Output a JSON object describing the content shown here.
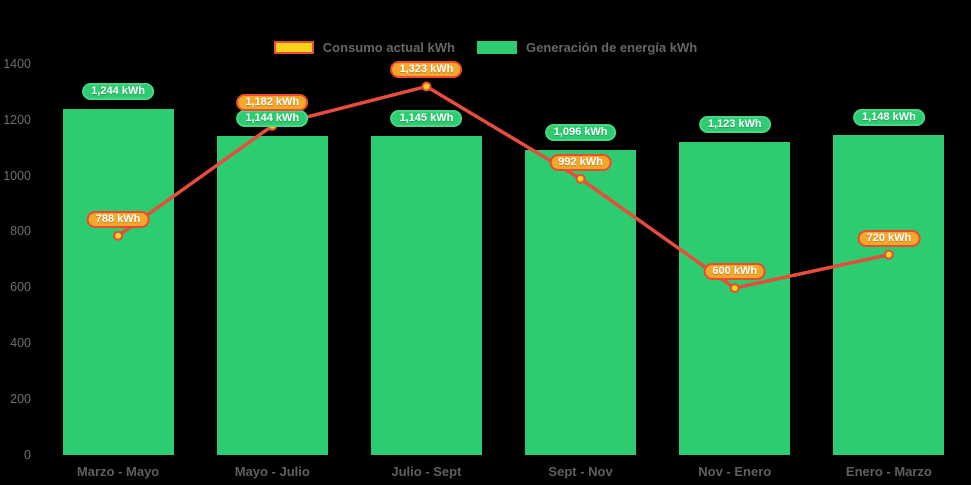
{
  "legend": [
    {
      "label": "Consumo actual kWh"
    },
    {
      "label": "Generación de energía kWh"
    }
  ],
  "colors": {
    "background": "#000000",
    "bar_green": "#2ecc71",
    "bar_label_border": "#48d787",
    "line_red": "#e74c3c",
    "marker_yellow": "#fcd21c",
    "consumo_pill_fill": "#f3a82c",
    "consumo_pill_border": "#ef4a2d",
    "axis_text": "#5f5f5f"
  },
  "chart_data": {
    "type": "bar",
    "title": "",
    "xlabel": "",
    "ylabel": "",
    "categories": [
      "Marzo - Mayo",
      "Mayo - Julio",
      "Julio - Sept",
      "Sept - Nov",
      "Nov - Enero",
      "Enero - Marzo"
    ],
    "series": [
      {
        "name": "Generación de energía kWh",
        "type": "bar",
        "color": "#2ecc71",
        "values": [
          1244,
          1144,
          1145,
          1096,
          1123,
          1148
        ],
        "labels": [
          "1,244 kWh",
          "1,144 kWh",
          "1,145 kWh",
          "1,096 kWh",
          "1,123 kWh",
          "1,148 kWh"
        ]
      },
      {
        "name": "Consumo actual kWh",
        "type": "line",
        "color": "#e74c3c",
        "values": [
          788,
          1182,
          1323,
          992,
          600,
          720
        ],
        "labels": [
          "788 kWh",
          "1,182 kWh",
          "1,323 kWh",
          "992 kWh",
          "600 kWh",
          "720 kWh"
        ]
      }
    ],
    "ylim": [
      0,
      1400
    ],
    "yticks": [
      0,
      200,
      400,
      600,
      800,
      1000,
      1200,
      1400
    ],
    "grid": false,
    "legend_position": "top"
  }
}
